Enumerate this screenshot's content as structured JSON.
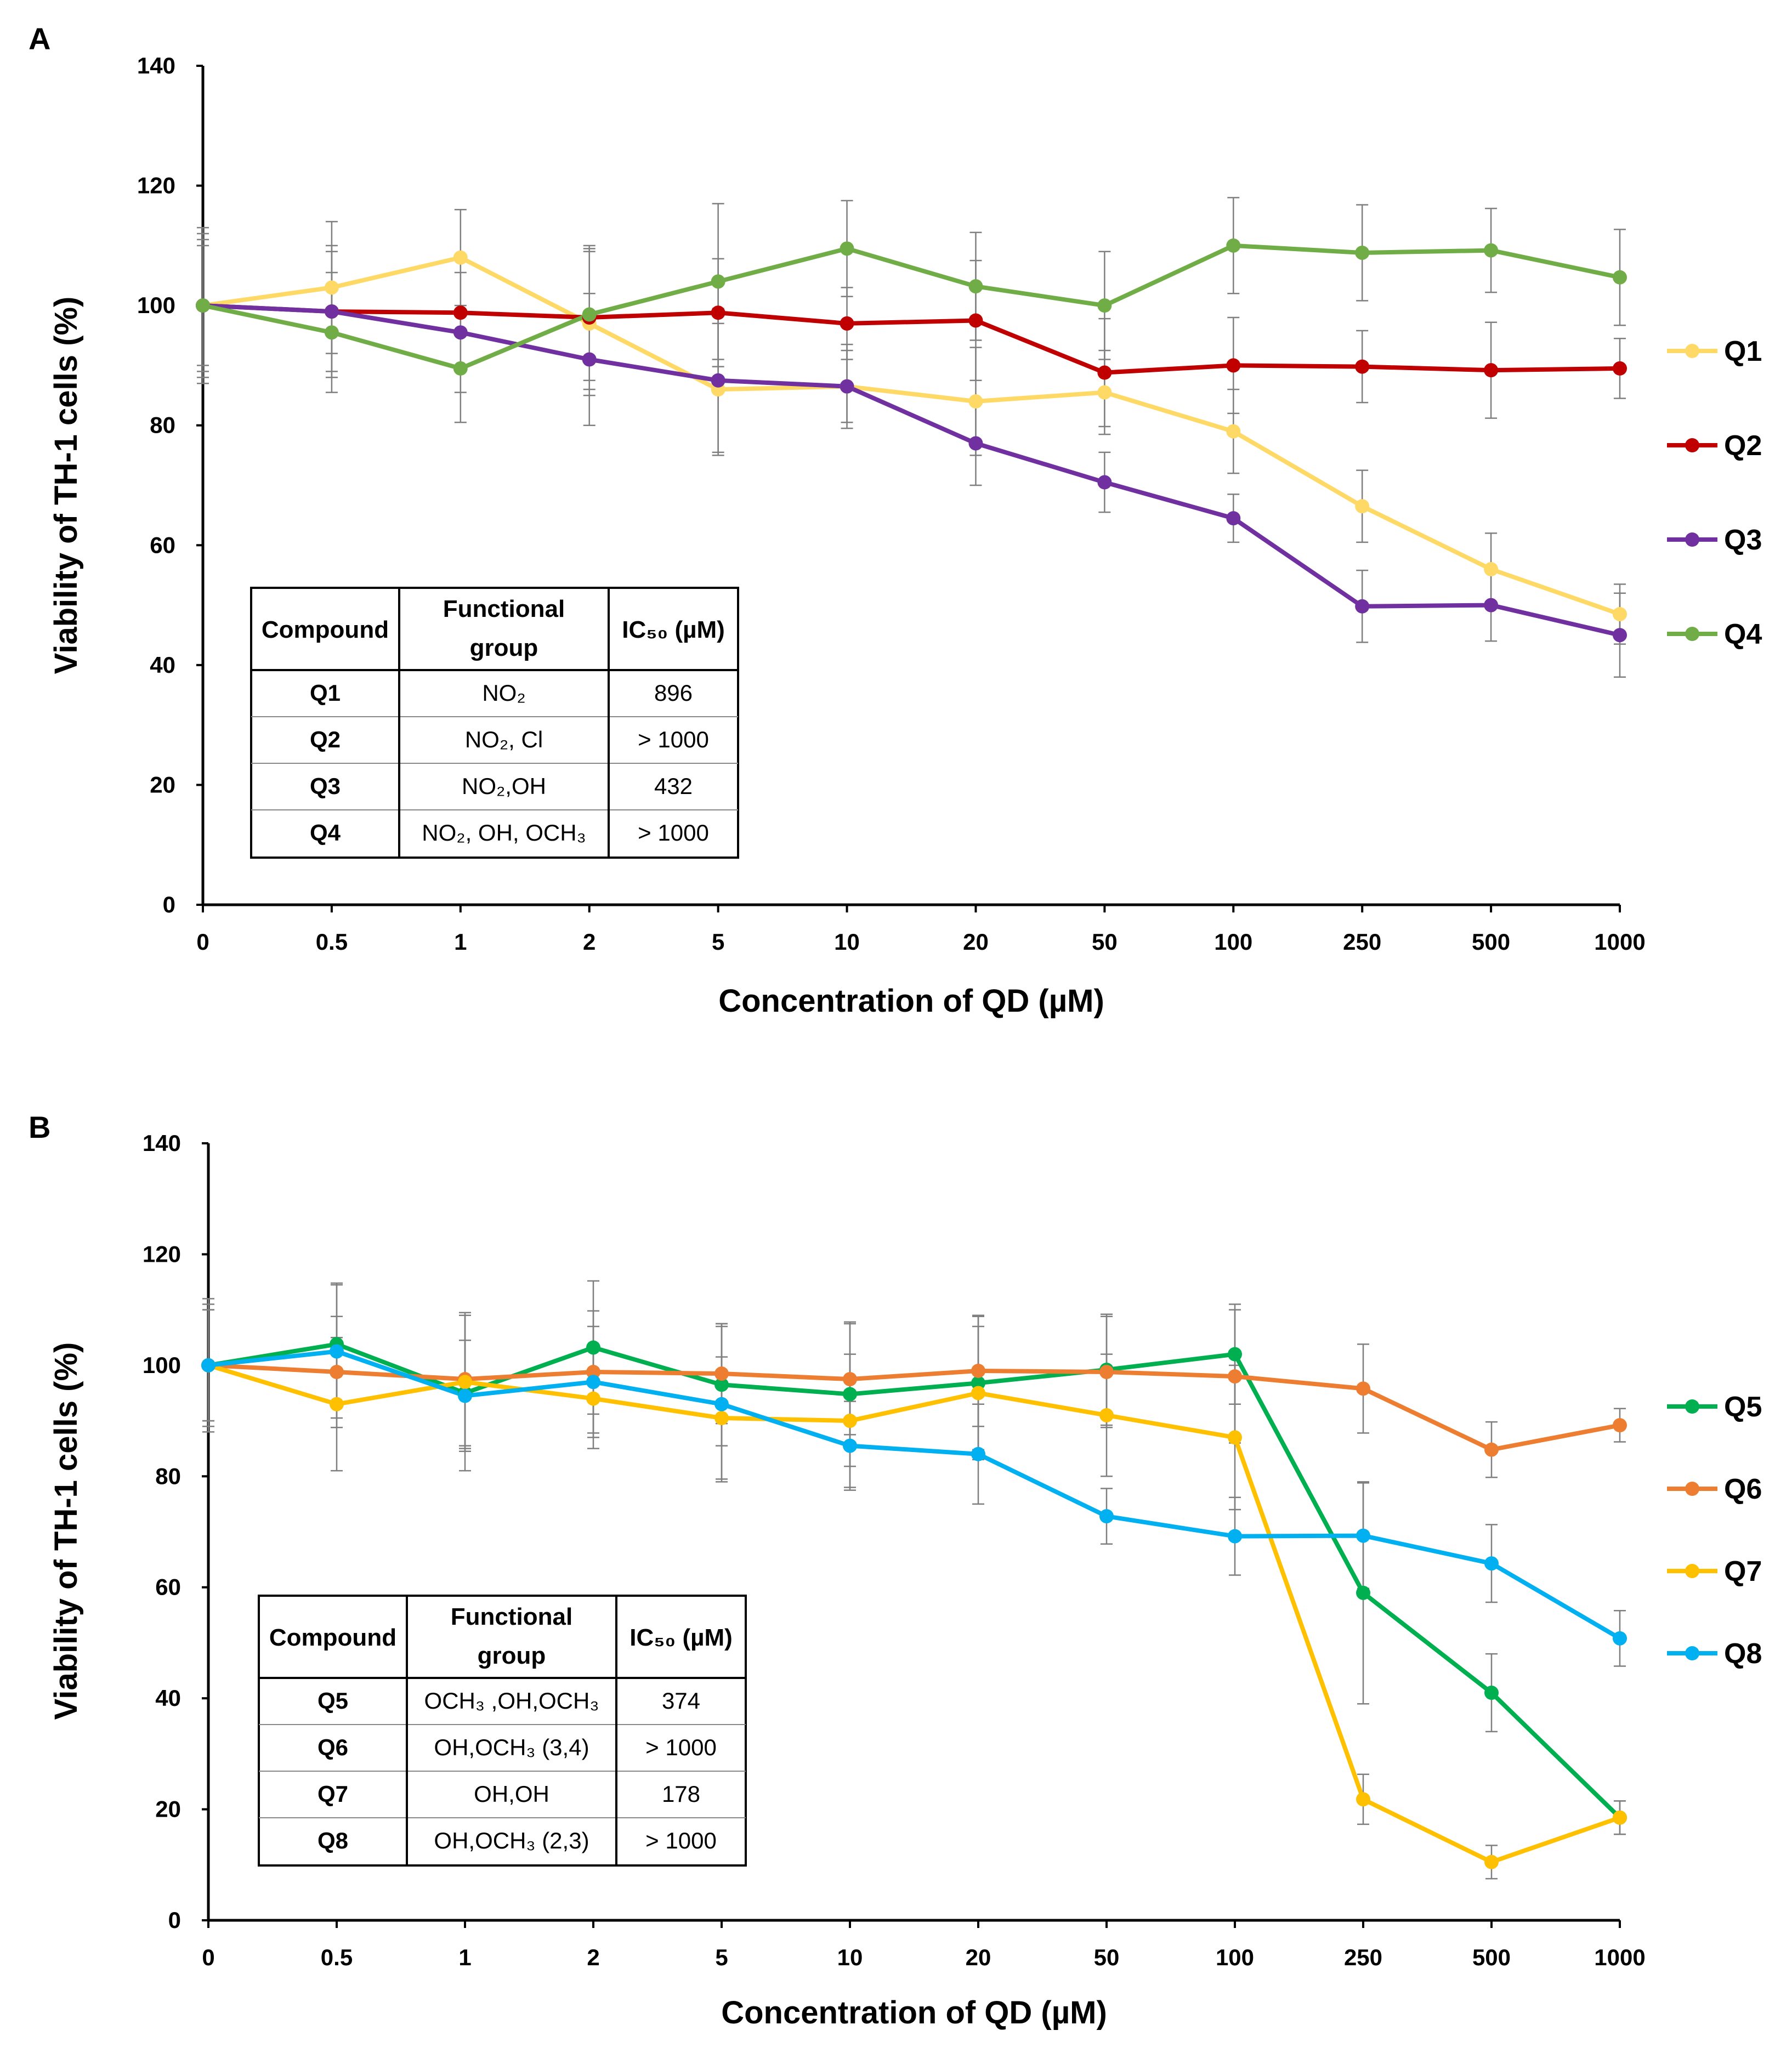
{
  "figure": {
    "background": "#ffffff"
  },
  "chart_data": [
    {
      "panel_label": "A",
      "type": "line",
      "xlabel": "Concentration of QD (µM)",
      "ylabel": "Viability of TH-1 cells (%)",
      "categories": [
        "0",
        "0.5",
        "1",
        "2",
        "5",
        "10",
        "20",
        "50",
        "100",
        "250",
        "500",
        "1000"
      ],
      "ylim": [
        0,
        140
      ],
      "yticks": [
        0,
        20,
        40,
        60,
        80,
        100,
        120,
        140
      ],
      "grid": false,
      "legend_position": "right",
      "series": [
        {
          "name": "Q1",
          "color": "#FFD966",
          "values": [
            100,
            103,
            108,
            97,
            86,
            86.5,
            84,
            85.5,
            79,
            66.5,
            56,
            48.5
          ],
          "errors": [
            12,
            11,
            8,
            12,
            11,
            6,
            9,
            7,
            7,
            6,
            6,
            5
          ]
        },
        {
          "name": "Q2",
          "color": "#C00000",
          "values": [
            100,
            99,
            98.8,
            98,
            98.8,
            97,
            97.5,
            88.8,
            90,
            89.8,
            89.2,
            89.5
          ],
          "errors": [
            10,
            10,
            9,
            12,
            9,
            6,
            10,
            9,
            8,
            6,
            8,
            5
          ]
        },
        {
          "name": "Q3",
          "color": "#7030A0",
          "values": [
            100,
            99,
            95.5,
            91,
            87.5,
            86.5,
            77,
            70.5,
            64.5,
            49.8,
            50,
            45
          ],
          "errors": [
            11,
            11,
            10,
            11,
            12,
            7,
            7,
            5,
            4,
            6,
            6,
            7
          ]
        },
        {
          "name": "Q4",
          "color": "#70AD47",
          "values": [
            100,
            95.5,
            89.5,
            98.5,
            104,
            109.5,
            103.2,
            100,
            110,
            108.8,
            109.2,
            104.7
          ],
          "errors": [
            13,
            10,
            9,
            11,
            13,
            8,
            9,
            9,
            8,
            8,
            7,
            8
          ]
        }
      ],
      "table": {
        "headers": {
          "compound": "Compound",
          "functional_line1": "Functional",
          "functional_line2": "group",
          "ic50": "IC₅₀ (µM)"
        },
        "rows": [
          {
            "compound": "Q1",
            "group": "NO₂",
            "ic50": "896"
          },
          {
            "compound": "Q2",
            "group": "NO₂, Cl",
            "ic50": "> 1000"
          },
          {
            "compound": "Q3",
            "group": "NO₂,OH",
            "ic50": "432"
          },
          {
            "compound": "Q4",
            "group": "NO₂, OH, OCH₃",
            "ic50": "> 1000"
          }
        ]
      }
    },
    {
      "panel_label": "B",
      "type": "line",
      "xlabel": "Concentration of QD (µM)",
      "ylabel": "Viability of TH-1 cells (%)",
      "categories": [
        "0",
        "0.5",
        "1",
        "2",
        "5",
        "10",
        "20",
        "50",
        "100",
        "250",
        "500",
        "1000"
      ],
      "ylim": [
        0,
        140
      ],
      "yticks": [
        0,
        20,
        40,
        60,
        80,
        100,
        120,
        140
      ],
      "grid": false,
      "legend_position": "right",
      "series": [
        {
          "name": "Q5",
          "color": "#00B050",
          "values": [
            100,
            103.8,
            95,
            103.2,
            96.5,
            94.8,
            96.8,
            99.2,
            102,
            59,
            41,
            18.5
          ],
          "errors": [
            12,
            11,
            14,
            12,
            11,
            13,
            12,
            10,
            9,
            20,
            7,
            3
          ]
        },
        {
          "name": "Q6",
          "color": "#ED7D31",
          "values": [
            100,
            98.8,
            97.5,
            98.8,
            98.5,
            97.5,
            99,
            98.8,
            98,
            95.8,
            84.8,
            89.2
          ],
          "errors": [
            10,
            10,
            12,
            11,
            9,
            10,
            10,
            10,
            12,
            8,
            5,
            3
          ]
        },
        {
          "name": "Q7",
          "color": "#FFC000",
          "values": [
            100,
            93,
            97,
            94,
            90.5,
            90,
            95,
            91,
            87,
            21.8,
            10.5,
            18.5
          ],
          "errors": [
            11,
            12,
            12,
            9,
            11,
            12,
            12,
            11,
            13,
            4.5,
            3,
            3
          ]
        },
        {
          "name": "Q8",
          "color": "#00B0F0",
          "values": [
            100,
            102.5,
            94.5,
            97,
            93,
            85.5,
            84,
            72.8,
            69.2,
            69.3,
            64.3,
            50.8
          ],
          "errors": [
            10,
            12,
            10,
            10,
            14,
            8,
            9,
            5,
            7,
            9.5,
            7,
            5
          ]
        }
      ],
      "table": {
        "headers": {
          "compound": "Compound",
          "functional_line1": "Functional",
          "functional_line2": "group",
          "ic50": "IC₅₀ (µM)"
        },
        "rows": [
          {
            "compound": "Q5",
            "group": "OCH₃ ,OH,OCH₃",
            "ic50": "374"
          },
          {
            "compound": "Q6",
            "group": "OH,OCH₃ (3,4)",
            "ic50": "> 1000"
          },
          {
            "compound": "Q7",
            "group": "OH,OH",
            "ic50": "178"
          },
          {
            "compound": "Q8",
            "group": "OH,OCH₃ (2,3)",
            "ic50": "> 1000"
          }
        ]
      }
    }
  ]
}
